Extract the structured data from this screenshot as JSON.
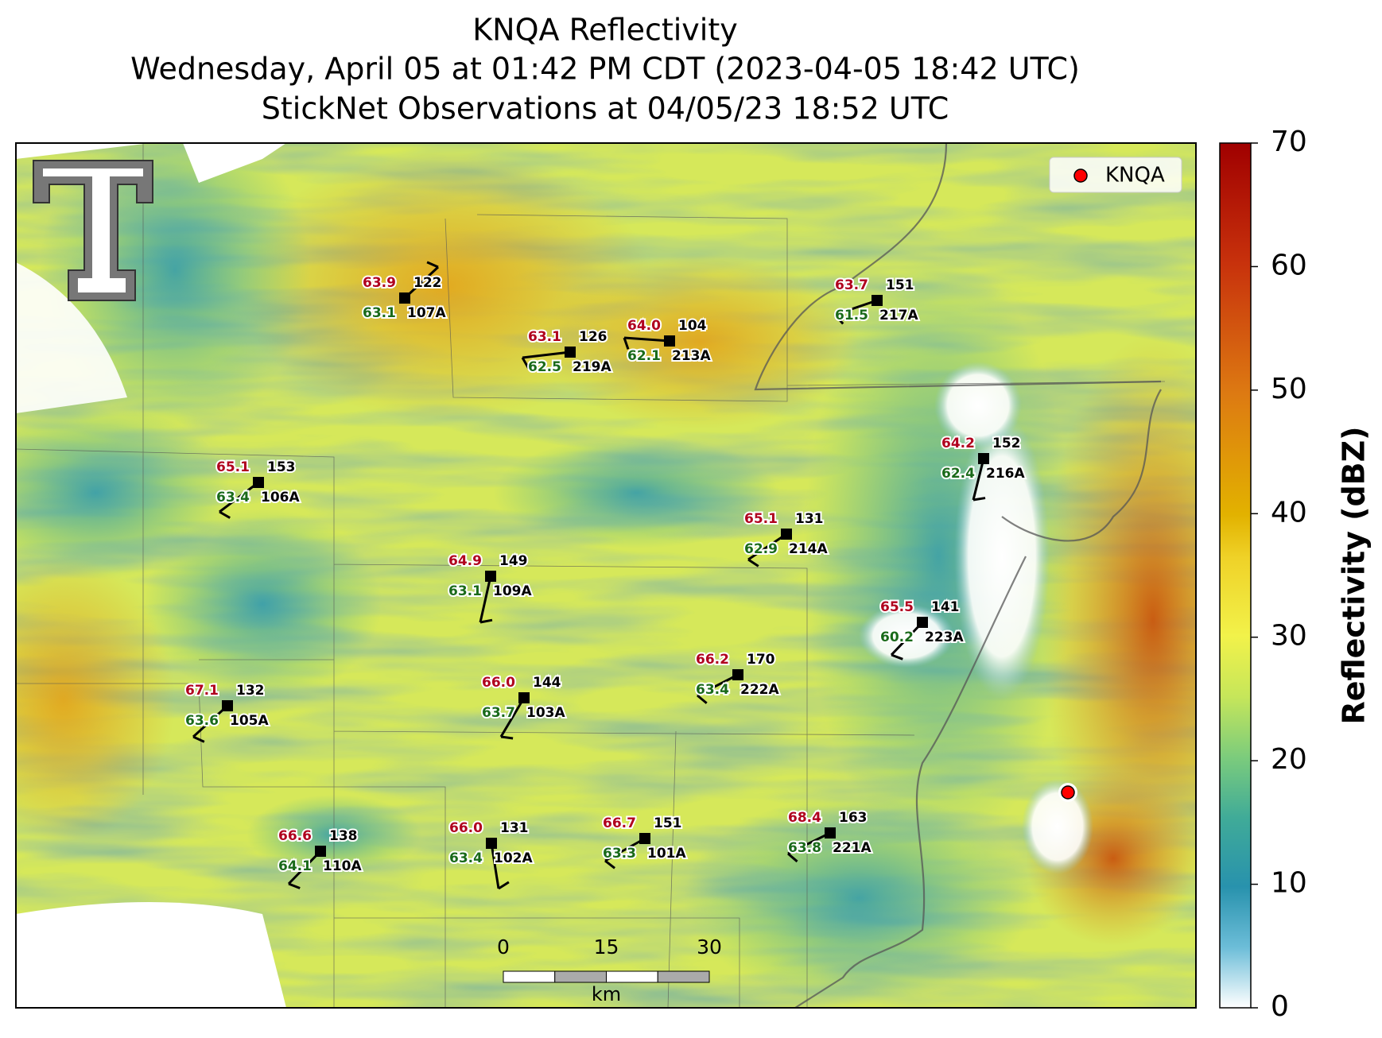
{
  "header": {
    "title": [
      "KNQA Reflectivity",
      "Wednesday, April 05 at 01:42 PM CDT (2023-04-05 18:42 UTC)",
      "StickNet Observations at 04/05/23 18:52 UTC"
    ]
  },
  "legend": {
    "label": "KNQA"
  },
  "colorbar": {
    "label": "Reflectivity (dBZ)",
    "lim": [
      0,
      70
    ],
    "ticks": [
      0,
      10,
      20,
      30,
      40,
      50,
      60,
      70
    ]
  },
  "scale_bar": {
    "lim": [
      0,
      30
    ],
    "ticks": [
      0,
      15,
      30
    ],
    "unit": "km"
  },
  "stations": [
    {
      "id": "107A",
      "temp": "63.9",
      "dew": "63.1",
      "value": "122"
    },
    {
      "id": "219A",
      "temp": "63.1",
      "dew": "62.5",
      "value": "126"
    },
    {
      "id": "213A",
      "temp": "64.0",
      "dew": "62.1",
      "value": "104"
    },
    {
      "id": "217A",
      "temp": "63.7",
      "dew": "61.5",
      "value": "151"
    },
    {
      "id": "106A",
      "temp": "65.1",
      "dew": "63.4",
      "value": "153"
    },
    {
      "id": "216A",
      "temp": "64.2",
      "dew": "62.4",
      "value": "152"
    },
    {
      "id": "214A",
      "temp": "65.1",
      "dew": "62.9",
      "value": "131"
    },
    {
      "id": "109A",
      "temp": "64.9",
      "dew": "63.1",
      "value": "149"
    },
    {
      "id": "223A",
      "temp": "65.5",
      "dew": "60.2",
      "value": "141"
    },
    {
      "id": "222A",
      "temp": "66.2",
      "dew": "63.4",
      "value": "170"
    },
    {
      "id": "105A",
      "temp": "67.1",
      "dew": "63.6",
      "value": "132"
    },
    {
      "id": "103A",
      "temp": "66.0",
      "dew": "63.7",
      "value": "144"
    },
    {
      "id": "221A",
      "temp": "68.4",
      "dew": "63.8",
      "value": "163"
    },
    {
      "id": "110A",
      "temp": "66.6",
      "dew": "64.1",
      "value": "138"
    },
    {
      "id": "102A",
      "temp": "66.0",
      "dew": "63.4",
      "value": "131"
    },
    {
      "id": "101A",
      "temp": "66.7",
      "dew": "63.3",
      "value": "151"
    }
  ]
}
